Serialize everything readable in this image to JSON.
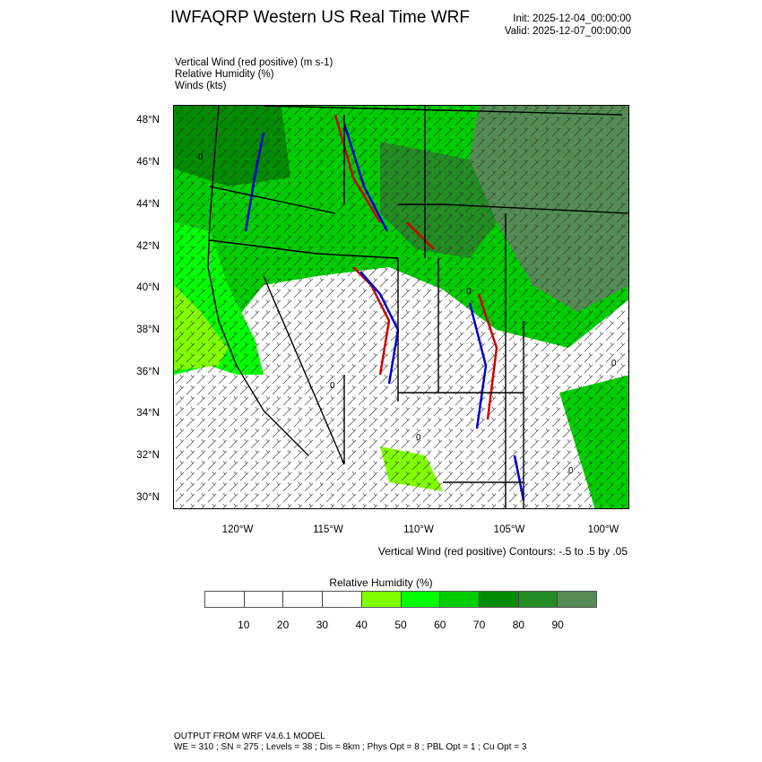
{
  "header": {
    "title": "IWFAQRP Western US Real Time WRF",
    "init": "Init: 2025-12-04_00:00:00",
    "valid": "Valid: 2025-12-07_00:00:00"
  },
  "fields": [
    "Vertical Wind (red positive)   (m s-1)",
    "Relative Humidity   (%)",
    "Winds   (kts)"
  ],
  "map": {
    "lat_labels": [
      "48°N",
      "46°N",
      "44°N",
      "42°N",
      "40°N",
      "38°N",
      "36°N",
      "34°N",
      "32°N",
      "30°N"
    ],
    "lon_labels": [
      "120°W",
      "115°W",
      "110°W",
      "105°W",
      "100°W"
    ],
    "contour_label": "0",
    "positive_color": "#cc0000",
    "negative_color": "#0000cc"
  },
  "contour_caption": "Vertical Wind (red positive) Contours: -.5 to .5 by .05",
  "colorbar": {
    "title": "Relative Humidity  (%)",
    "colors": [
      "#ffffff",
      "#ffffff",
      "#ffffff",
      "#ffffff",
      "#80ff00",
      "#00ff00",
      "#00cd00",
      "#008b00",
      "#228b22",
      "#548b54"
    ],
    "labels": [
      "10",
      "20",
      "30",
      "40",
      "50",
      "60",
      "70",
      "80",
      "90"
    ]
  },
  "footer": {
    "line1": "OUTPUT FROM WRF V4.6.1 MODEL",
    "line2": "WE = 310 ; SN = 275 ; Levels = 38 ; Dis = 8km ; Phys Opt = 8 ; PBL Opt = 1 ; Cu Opt = 3"
  }
}
